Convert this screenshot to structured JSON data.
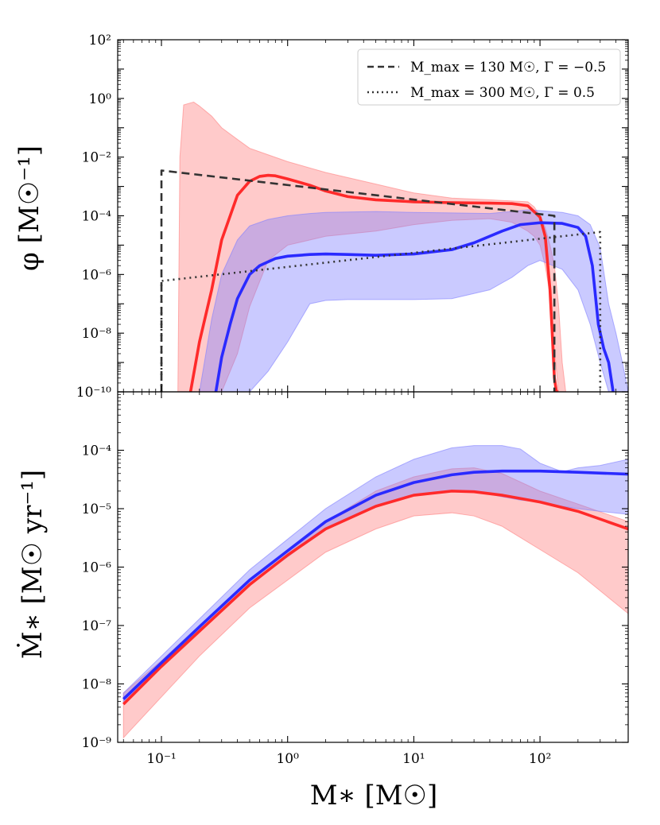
{
  "chart_data": [
    {
      "type": "line",
      "panel": "top",
      "ylabel": "φ [M☉⁻¹]",
      "xscale": "log",
      "yscale": "log",
      "xlim": [
        0.045,
        500
      ],
      "ylim": [
        1e-10,
        100
      ],
      "y_ticks": [
        {
          "value": 100,
          "label": "10²"
        },
        {
          "value": 1,
          "label": "10⁰"
        },
        {
          "value": 0.01,
          "label": "10⁻²"
        },
        {
          "value": 0.0001,
          "label": "10⁻⁴"
        },
        {
          "value": 1e-06,
          "label": "10⁻⁶"
        },
        {
          "value": 1e-08,
          "label": "10⁻⁸"
        },
        {
          "value": 1e-10,
          "label": "10⁻¹⁰"
        }
      ],
      "legend": {
        "location": "top-right",
        "entries": [
          {
            "style": "dashed",
            "color": "#333333",
            "label": "M_max = 130 M☉, Γ = −0.5"
          },
          {
            "style": "dotted",
            "color": "#333333",
            "label": "M_max = 300 M☉, Γ = 0.5"
          }
        ]
      },
      "series": [
        {
          "name": "red-median",
          "color": "#ff2a2a",
          "style": "solid",
          "x": [
            0.17,
            0.2,
            0.25,
            0.3,
            0.4,
            0.5,
            0.6,
            0.7,
            0.8,
            1,
            1.5,
            2,
            3,
            5,
            10,
            20,
            40,
            60,
            80,
            100,
            110,
            120,
            125,
            130,
            135,
            140
          ],
          "y": [
            1e-10,
            5e-09,
            3e-07,
            1.5e-05,
            0.0005,
            0.0015,
            0.0022,
            0.0024,
            0.0023,
            0.0018,
            0.0011,
            0.0007,
            0.00045,
            0.00035,
            0.0003,
            0.00028,
            0.00027,
            0.00026,
            0.00022,
            9e-05,
            2e-05,
            3e-07,
            1e-08,
            3e-10,
            1e-10,
            1e-10
          ]
        },
        {
          "name": "blue-median",
          "color": "#2a2aff",
          "style": "solid",
          "x": [
            0.27,
            0.3,
            0.35,
            0.4,
            0.5,
            0.6,
            0.8,
            1,
            1.5,
            2,
            3,
            5,
            10,
            20,
            30,
            50,
            70,
            100,
            150,
            200,
            230,
            260,
            290,
            320,
            350,
            380
          ],
          "y": [
            1e-10,
            1.5e-09,
            2e-08,
            1.5e-07,
            1e-06,
            2e-06,
            3.5e-06,
            4.2e-06,
            4.8e-06,
            5e-06,
            4.8e-06,
            4.5e-06,
            5e-06,
            7e-06,
            1.2e-05,
            3e-05,
            5e-05,
            5.8e-05,
            5.5e-05,
            4e-05,
            2e-05,
            2e-06,
            2e-08,
            3e-09,
            1e-09,
            1e-10
          ]
        },
        {
          "name": "red-band",
          "color": "#ff8080",
          "style": "band",
          "x": [
            0.135,
            0.14,
            0.15,
            0.18,
            0.2,
            0.25,
            0.3,
            0.4,
            0.5,
            0.7,
            1,
            2,
            5,
            10,
            20,
            40,
            60,
            80,
            90,
            100,
            110,
            120,
            130,
            140,
            150,
            160
          ],
          "upper": [
            1e-10,
            0.01,
            0.6,
            0.75,
            0.55,
            0.25,
            0.1,
            0.04,
            0.02,
            0.012,
            0.007,
            0.003,
            0.0012,
            0.0006,
            0.0004,
            0.00035,
            0.00032,
            0.0003,
            0.0002,
            0.0001,
            4e-05,
            1e-05,
            2e-06,
            1e-07,
            1e-09,
            1e-10
          ],
          "lower": [
            1e-10,
            1e-10,
            1e-10,
            1e-10,
            1e-10,
            1e-10,
            1e-10,
            2e-09,
            8e-08,
            3e-06,
            1e-05,
            2e-05,
            3e-05,
            5e-05,
            7e-05,
            8e-05,
            6e-05,
            3e-05,
            2e-05,
            1e-05,
            2e-06,
            2e-07,
            3e-09,
            1e-10,
            1e-10,
            1e-10
          ]
        },
        {
          "name": "blue-band",
          "color": "#8080ff",
          "style": "band",
          "x": [
            0.2,
            0.25,
            0.3,
            0.4,
            0.5,
            0.7,
            1,
            1.5,
            2,
            3,
            5,
            10,
            20,
            40,
            60,
            80,
            100,
            150,
            200,
            250,
            300,
            350,
            400,
            450,
            500
          ],
          "upper": [
            1e-10,
            3e-08,
            1e-06,
            1.5e-05,
            4.5e-05,
            7.5e-05,
            0.0001,
            0.00012,
            0.00013,
            0.000135,
            0.00014,
            0.00013,
            0.000125,
            0.00012,
            0.00014,
            0.00016,
            0.00015,
            0.00013,
            0.0001,
            5e-05,
            8e-06,
            1e-07,
            1e-08,
            1e-09,
            1e-10
          ],
          "lower": [
            1e-10,
            1e-10,
            1e-10,
            1e-10,
            1e-10,
            5e-10,
            5e-09,
            1e-07,
            1.3e-07,
            1.4e-07,
            1.4e-07,
            1.4e-07,
            1.5e-07,
            3e-07,
            8e-07,
            2e-06,
            3e-06,
            1.5e-06,
            3e-07,
            2e-08,
            1e-09,
            1e-10,
            1e-10,
            1e-10,
            1e-10
          ]
        },
        {
          "name": "dashed-model",
          "color": "#333333",
          "style": "dashed",
          "x": [
            0.1,
            0.1,
            130,
            130
          ],
          "y": [
            1e-10,
            0.0035,
            0.0001,
            1e-10
          ]
        },
        {
          "name": "dotted-model",
          "color": "#333333",
          "style": "dotted",
          "x": [
            0.1,
            0.1,
            300,
            300
          ],
          "y": [
            1e-10,
            6e-07,
            2.8e-05,
            1e-10
          ]
        }
      ]
    },
    {
      "type": "line",
      "panel": "bottom",
      "ylabel": "Ṁ∗ [M☉ yr⁻¹]",
      "xlabel": "M∗  [M☉]",
      "xscale": "log",
      "yscale": "log",
      "xlim": [
        0.045,
        500
      ],
      "ylim": [
        1e-09,
        0.001
      ],
      "x_ticks": [
        {
          "value": 0.1,
          "label": "10⁻¹"
        },
        {
          "value": 1,
          "label": "10⁰"
        },
        {
          "value": 10,
          "label": "10¹"
        },
        {
          "value": 100,
          "label": "10²"
        }
      ],
      "y_ticks": [
        {
          "value": 0.0001,
          "label": "10⁻⁴"
        },
        {
          "value": 1e-05,
          "label": "10⁻⁵"
        },
        {
          "value": 1e-06,
          "label": "10⁻⁶"
        },
        {
          "value": 1e-07,
          "label": "10⁻⁷"
        },
        {
          "value": 1e-08,
          "label": "10⁻⁸"
        },
        {
          "value": 1e-09,
          "label": "10⁻⁹"
        }
      ],
      "series": [
        {
          "name": "red-median",
          "color": "#ff2a2a",
          "style": "solid",
          "x": [
            0.05,
            0.1,
            0.2,
            0.5,
            1,
            2,
            5,
            10,
            20,
            30,
            50,
            100,
            200,
            500
          ],
          "y": [
            4.5e-09,
            2e-08,
            8e-08,
            5e-07,
            1.6e-06,
            4.5e-06,
            1.1e-05,
            1.7e-05,
            2e-05,
            1.95e-05,
            1.7e-05,
            1.3e-05,
            9e-06,
            4.5e-06
          ]
        },
        {
          "name": "blue-median",
          "color": "#2a2aff",
          "style": "solid",
          "x": [
            0.05,
            0.1,
            0.2,
            0.5,
            1,
            2,
            5,
            10,
            20,
            30,
            50,
            100,
            200,
            500
          ],
          "y": [
            5.5e-09,
            2.3e-08,
            9.5e-08,
            6e-07,
            1.9e-06,
            6e-06,
            1.7e-05,
            2.8e-05,
            3.8e-05,
            4.2e-05,
            4.4e-05,
            4.4e-05,
            4.2e-05,
            3.9e-05
          ]
        },
        {
          "name": "red-band",
          "color": "#ff8080",
          "style": "band",
          "x": [
            0.05,
            0.1,
            0.2,
            0.5,
            1,
            2,
            5,
            10,
            20,
            30,
            50,
            100,
            200,
            500
          ],
          "upper": [
            7e-09,
            2.5e-08,
            1e-07,
            6e-07,
            2e-06,
            6e-06,
            2e-05,
            3.5e-05,
            4.8e-05,
            5e-05,
            4e-05,
            2e-05,
            1.2e-05,
            6e-06
          ],
          "lower": [
            1.2e-09,
            6e-09,
            3e-08,
            2e-07,
            6e-07,
            1.8e-06,
            4.5e-06,
            7.5e-06,
            8.5e-06,
            7.5e-06,
            5e-06,
            2e-06,
            8e-07,
            1.6e-07
          ]
        },
        {
          "name": "blue-band",
          "color": "#8080ff",
          "style": "band",
          "x": [
            0.05,
            0.1,
            0.2,
            0.5,
            1,
            2,
            5,
            10,
            20,
            30,
            50,
            70,
            100,
            150,
            200,
            300,
            500
          ],
          "upper": [
            7e-09,
            3e-08,
            1.3e-07,
            9e-07,
            3e-06,
            1e-05,
            3.5e-05,
            7e-05,
            0.00011,
            0.00012,
            0.00012,
            0.000105,
            6e-05,
            4.3e-05,
            5e-05,
            5.5e-05,
            7e-05
          ],
          "lower": [
            5e-09,
            2e-08,
            8e-08,
            5e-07,
            1.5e-06,
            4.5e-06,
            1.1e-05,
            1.7e-05,
            2e-05,
            2e-05,
            1.6e-05,
            1.4e-05,
            1.3e-05,
            1.1e-05,
            1e-05,
            9e-06,
            8e-06
          ]
        }
      ]
    }
  ]
}
